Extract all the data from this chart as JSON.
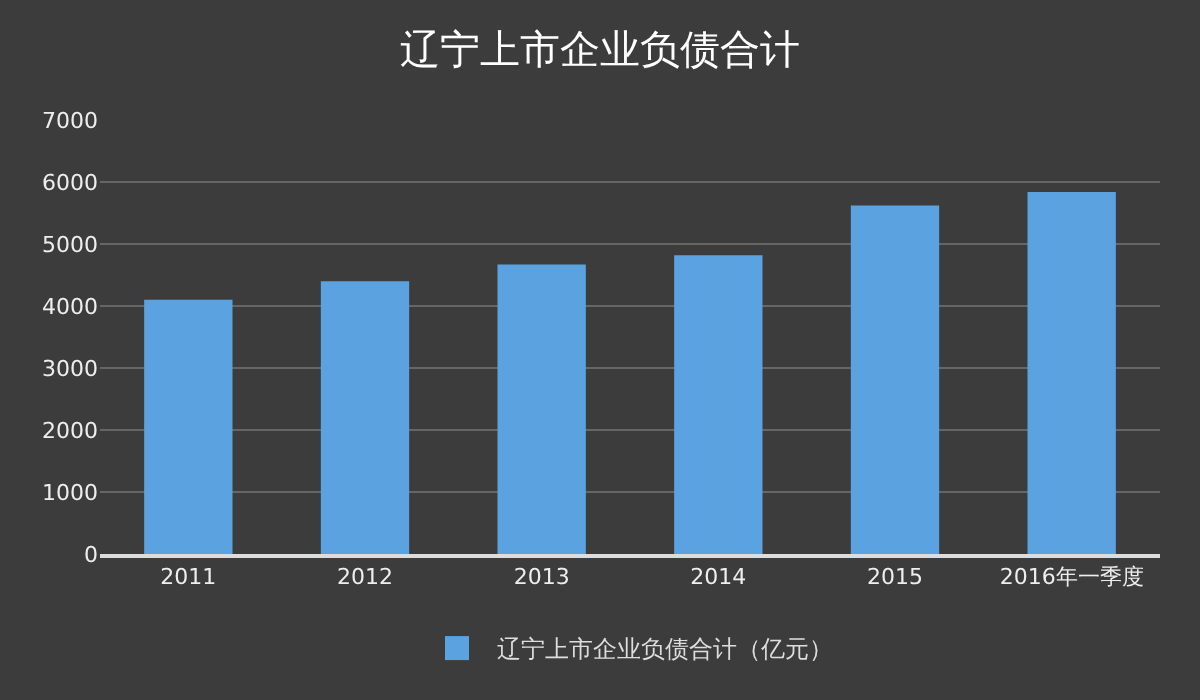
{
  "chart_data": {
    "type": "bar",
    "title": "辽宁上市企业负债合计",
    "categories": [
      "2011",
      "2012",
      "2013",
      "2014",
      "2015",
      "2016年一季度"
    ],
    "series": [
      {
        "name": "辽宁上市企业负债合计（亿元）",
        "color": "#5ba3e0",
        "values": [
          4100,
          4400,
          4670,
          4820,
          5620,
          5840
        ]
      }
    ],
    "ylim": [
      0,
      7000
    ],
    "yticks": [
      0,
      1000,
      2000,
      3000,
      4000,
      5000,
      6000,
      7000
    ],
    "grid": "y",
    "legend": "bottom"
  }
}
